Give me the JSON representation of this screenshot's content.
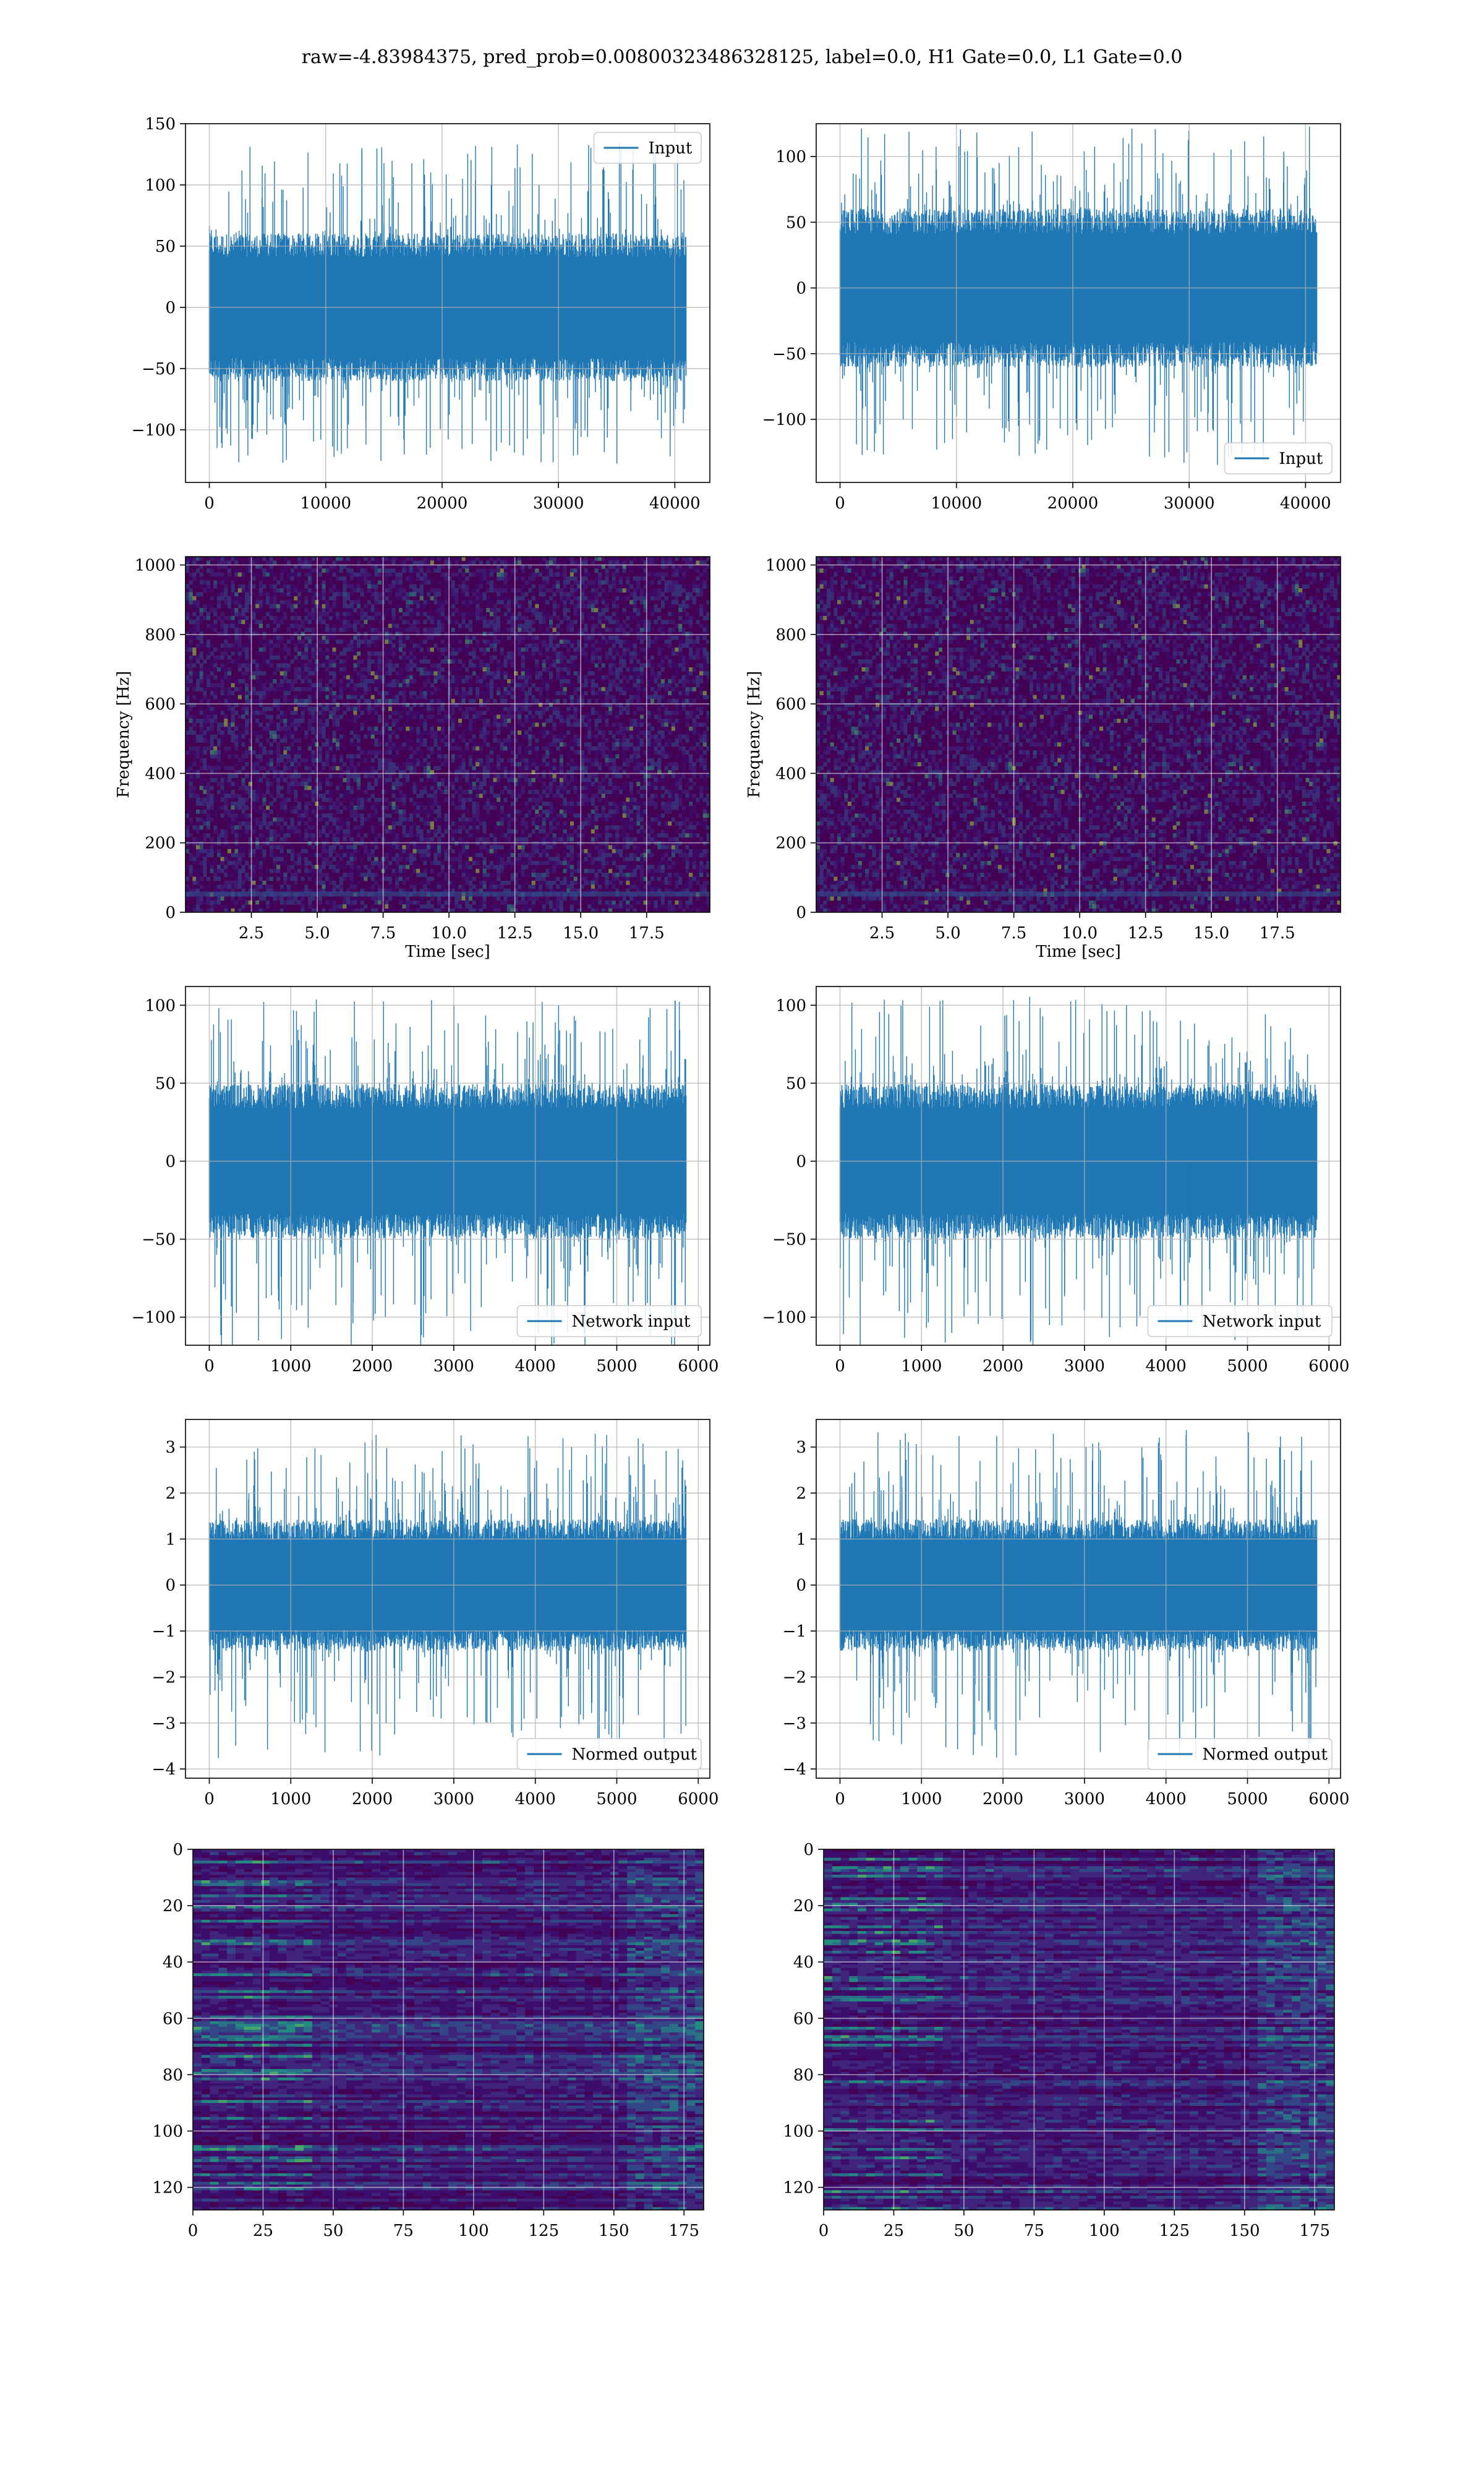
{
  "figure": {
    "title": "raw=-4.83984375, pred_prob=0.00800323486328125, label=0.0, H1 Gate=0.0, L1 Gate=0.0"
  },
  "colors": {
    "line": "#1f77b4",
    "grid": "#b0b0b0",
    "viridis_low": "#440154",
    "viridis_mid": "#21918c",
    "viridis_high": "#fde725"
  },
  "chart_data": [
    {
      "type": "line",
      "id": "raw-h1",
      "series": [
        {
          "name": "Input",
          "x_range": [
            0,
            40960
          ],
          "envelope_typical": [
            -55,
            55
          ],
          "spike_extremes": [
            -129,
            137
          ]
        }
      ],
      "xlim": [
        -2048,
        43008
      ],
      "ylim": [
        -143,
        150
      ],
      "xticks": [
        0,
        10000,
        20000,
        30000,
        40000
      ],
      "yticks": [
        -100,
        -50,
        0,
        50,
        100,
        150
      ],
      "xtick_labels": [
        "0",
        "10000",
        "20000",
        "30000",
        "40000"
      ],
      "ytick_labels": [
        "−100",
        "−50",
        "0",
        "50",
        "100",
        "150"
      ],
      "grid": true,
      "legend": "top-right"
    },
    {
      "type": "line",
      "id": "raw-l1",
      "series": [
        {
          "name": "Input",
          "x_range": [
            0,
            40960
          ],
          "envelope_typical": [
            -55,
            55
          ],
          "spike_extremes": [
            -135,
            123
          ]
        }
      ],
      "xlim": [
        -2048,
        43008
      ],
      "ylim": [
        -148,
        125
      ],
      "xticks": [
        0,
        10000,
        20000,
        30000,
        40000
      ],
      "yticks": [
        -100,
        -50,
        0,
        50,
        100
      ],
      "xtick_labels": [
        "0",
        "10000",
        "20000",
        "30000",
        "40000"
      ],
      "ytick_labels": [
        "−100",
        "−50",
        "0",
        "50",
        "100"
      ],
      "grid": true,
      "legend": "bottom-right"
    },
    {
      "type": "heatmap",
      "id": "spec-h1",
      "xlabel": "Time [sec]",
      "ylabel": "Frequency [Hz]",
      "xlim": [
        0,
        19.9
      ],
      "ylim": [
        0,
        1024
      ],
      "xticks": [
        2.5,
        5.0,
        7.5,
        10.0,
        12.5,
        15.0,
        17.5
      ],
      "yticks": [
        0,
        200,
        400,
        600,
        800,
        1000
      ],
      "xtick_labels": [
        "2.5",
        "5.0",
        "7.5",
        "10.0",
        "12.5",
        "15.0",
        "17.5"
      ],
      "ytick_labels": [
        "0",
        "200",
        "400",
        "600",
        "800",
        "1000"
      ],
      "colormap": "viridis",
      "grid": true
    },
    {
      "type": "heatmap",
      "id": "spec-l1",
      "xlabel": "Time [sec]",
      "ylabel": "Frequency [Hz]",
      "xlim": [
        0,
        19.9
      ],
      "ylim": [
        0,
        1024
      ],
      "xticks": [
        2.5,
        5.0,
        7.5,
        10.0,
        12.5,
        15.0,
        17.5
      ],
      "yticks": [
        0,
        200,
        400,
        600,
        800,
        1000
      ],
      "xtick_labels": [
        "2.5",
        "5.0",
        "7.5",
        "10.0",
        "12.5",
        "15.0",
        "17.5"
      ],
      "ytick_labels": [
        "0",
        "200",
        "400",
        "600",
        "800",
        "1000"
      ],
      "colormap": "viridis",
      "grid": true
    },
    {
      "type": "line",
      "id": "net-h1",
      "series": [
        {
          "name": "Network input",
          "x_range": [
            0,
            5850
          ],
          "envelope_typical": [
            -45,
            45
          ],
          "spike_extremes": [
            -120,
            105
          ]
        }
      ],
      "xlim": [
        -292,
        6142
      ],
      "ylim": [
        -118,
        112
      ],
      "xticks": [
        0,
        1000,
        2000,
        3000,
        4000,
        5000,
        6000
      ],
      "yticks": [
        -100,
        -50,
        0,
        50,
        100
      ],
      "xtick_labels": [
        "0",
        "1000",
        "2000",
        "3000",
        "4000",
        "5000",
        "6000"
      ],
      "ytick_labels": [
        "−100",
        "−50",
        "0",
        "50",
        "100"
      ],
      "grid": true,
      "legend": "bottom-right"
    },
    {
      "type": "line",
      "id": "net-l1",
      "series": [
        {
          "name": "Network input",
          "x_range": [
            0,
            5850
          ],
          "envelope_typical": [
            -45,
            45
          ],
          "spike_extremes": [
            -120,
            107
          ]
        }
      ],
      "xlim": [
        -292,
        6142
      ],
      "ylim": [
        -118,
        112
      ],
      "xticks": [
        0,
        1000,
        2000,
        3000,
        4000,
        5000,
        6000
      ],
      "yticks": [
        -100,
        -50,
        0,
        50,
        100
      ],
      "xtick_labels": [
        "0",
        "1000",
        "2000",
        "3000",
        "4000",
        "5000",
        "6000"
      ],
      "ytick_labels": [
        "−100",
        "−50",
        "0",
        "50",
        "100"
      ],
      "grid": true,
      "legend": "bottom-right"
    },
    {
      "type": "line",
      "id": "norm-h1",
      "series": [
        {
          "name": "Normed output",
          "x_range": [
            0,
            5850
          ],
          "envelope_typical": [
            -1.3,
            1.3
          ],
          "spike_extremes": [
            -3.8,
            3.3
          ]
        }
      ],
      "xlim": [
        -292,
        6142
      ],
      "ylim": [
        -4.2,
        3.6
      ],
      "xticks": [
        0,
        1000,
        2000,
        3000,
        4000,
        5000,
        6000
      ],
      "yticks": [
        -4,
        -3,
        -2,
        -1,
        0,
        1,
        2,
        3
      ],
      "xtick_labels": [
        "0",
        "1000",
        "2000",
        "3000",
        "4000",
        "5000",
        "6000"
      ],
      "ytick_labels": [
        "−4",
        "−3",
        "−2",
        "−1",
        "0",
        "1",
        "2",
        "3"
      ],
      "grid": true,
      "legend": "bottom-right"
    },
    {
      "type": "line",
      "id": "norm-l1",
      "series": [
        {
          "name": "Normed output",
          "x_range": [
            0,
            5850
          ],
          "envelope_typical": [
            -1.3,
            1.3
          ],
          "spike_extremes": [
            -3.8,
            3.4
          ]
        }
      ],
      "xlim": [
        -292,
        6142
      ],
      "ylim": [
        -4.2,
        3.6
      ],
      "xticks": [
        0,
        1000,
        2000,
        3000,
        4000,
        5000,
        6000
      ],
      "yticks": [
        -4,
        -3,
        -2,
        -1,
        0,
        1,
        2,
        3
      ],
      "xtick_labels": [
        "0",
        "1000",
        "2000",
        "3000",
        "4000",
        "5000",
        "6000"
      ],
      "ytick_labels": [
        "−4",
        "−3",
        "−2",
        "−1",
        "0",
        "1",
        "2",
        "3"
      ],
      "grid": true,
      "legend": "bottom-right"
    },
    {
      "type": "heatmap",
      "id": "feat-h1",
      "xlim": [
        0,
        182
      ],
      "ylim": [
        128,
        0
      ],
      "xticks": [
        0,
        25,
        50,
        75,
        100,
        125,
        150,
        175
      ],
      "yticks": [
        0,
        20,
        40,
        60,
        80,
        100,
        120
      ],
      "xtick_labels": [
        "0",
        "25",
        "50",
        "75",
        "100",
        "125",
        "150",
        "175"
      ],
      "ytick_labels": [
        "0",
        "20",
        "40",
        "60",
        "80",
        "100",
        "120"
      ],
      "colormap": "viridis",
      "grid": true
    },
    {
      "type": "heatmap",
      "id": "feat-l1",
      "xlim": [
        0,
        182
      ],
      "ylim": [
        128,
        0
      ],
      "xticks": [
        0,
        25,
        50,
        75,
        100,
        125,
        150,
        175
      ],
      "yticks": [
        0,
        20,
        40,
        60,
        80,
        100,
        120
      ],
      "xtick_labels": [
        "0",
        "25",
        "50",
        "75",
        "100",
        "125",
        "150",
        "175"
      ],
      "ytick_labels": [
        "0",
        "20",
        "40",
        "60",
        "80",
        "100",
        "120"
      ],
      "colormap": "viridis",
      "grid": true
    }
  ]
}
